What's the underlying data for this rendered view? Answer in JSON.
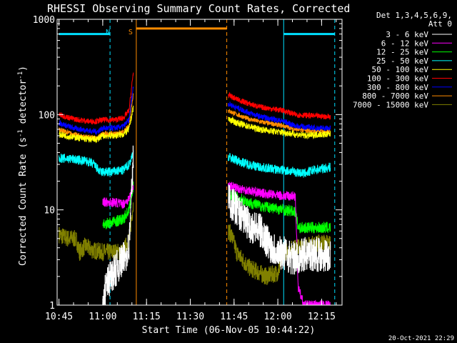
{
  "chart_data": {
    "type": "line",
    "title": "RHESSI Observing Summary Count Rates, Corrected",
    "xlabel": "Start Time (06-Nov-05 10:44:22)",
    "ylabel_main": "Corrected Count Rate (s",
    "ylabel_sup1": "-1",
    "ylabel_mid": " detector",
    "ylabel_sup2": "-1",
    "ylabel_end": ")",
    "yscale": "log",
    "ylim": [
      1,
      1000
    ],
    "xlim_minutes": [
      644.37,
      742.0
    ],
    "xticks": [
      {
        "label": "10:45",
        "min": 645
      },
      {
        "label": "11:00",
        "min": 660
      },
      {
        "label": "11:15",
        "min": 675
      },
      {
        "label": "11:30",
        "min": 690
      },
      {
        "label": "11:45",
        "min": 705
      },
      {
        "label": "12:00",
        "min": 720
      },
      {
        "label": "12:15",
        "min": 735
      }
    ],
    "yticks": [
      {
        "label": "1",
        "value": 1
      },
      {
        "label": "10",
        "value": 10
      },
      {
        "label": "100",
        "value": 100
      },
      {
        "label": "1000",
        "value": 1000
      }
    ],
    "legend": {
      "placement": "right",
      "header_line1": "Det 1,3,4,5,6,9,",
      "header_line2": "Att 0"
    },
    "flags": [
      {
        "label": "N",
        "color": "#00e0ff",
        "segments": [
          [
            645,
            662.5
          ],
          [
            722,
            739.5
          ]
        ],
        "level": 700,
        "bounds": [
          662.5,
          739.5
        ]
      },
      {
        "label": "S",
        "color": "#ff8c00",
        "segments": [
          [
            671.5,
            702.5
          ]
        ],
        "level": 800,
        "bounds": [
          671.5,
          702.5
        ]
      }
    ],
    "vlines": [
      {
        "min": 662.5,
        "color": "#00e0ff",
        "dash": true
      },
      {
        "min": 671.5,
        "color": "#ff8c00",
        "dash": false
      },
      {
        "min": 702.5,
        "color": "#ff8c00",
        "dash": true
      },
      {
        "min": 722.0,
        "color": "#00e0ff",
        "dash": false
      },
      {
        "min": 739.5,
        "color": "#00e0ff",
        "dash": true
      }
    ],
    "series": [
      {
        "name": "3 - 6 keV",
        "color": "#ffffff",
        "noise": 0.18,
        "seg1": [
          [
            660,
            0.8
          ],
          [
            661,
            1.6
          ],
          [
            664,
            2.3
          ],
          [
            667,
            3.0
          ],
          [
            669,
            4.0
          ],
          [
            670,
            20
          ],
          [
            670.5,
            38
          ]
        ],
        "seg2": [
          [
            703,
            13
          ],
          [
            706,
            10
          ],
          [
            710,
            7
          ],
          [
            714,
            6
          ],
          [
            718,
            4
          ],
          [
            722,
            3.5
          ],
          [
            726,
            3
          ],
          [
            727,
            3.2
          ],
          [
            730,
            3.5
          ],
          [
            734,
            3.4
          ],
          [
            738,
            3.3
          ]
        ]
      },
      {
        "name": "6 - 12 keV",
        "color": "#ff00ff",
        "noise": 0.05,
        "seg1": [
          [
            660,
            12
          ],
          [
            664,
            12
          ],
          [
            667,
            11.5
          ],
          [
            669,
            13
          ],
          [
            670.5,
            18
          ]
        ],
        "seg2": [
          [
            703,
            18
          ],
          [
            706,
            17
          ],
          [
            710,
            16
          ],
          [
            714,
            15
          ],
          [
            718,
            14.5
          ],
          [
            722,
            14
          ],
          [
            726,
            14
          ],
          [
            727,
            1.5
          ],
          [
            729,
            1.0
          ],
          [
            738,
            1.0
          ]
        ]
      },
      {
        "name": "12 - 25 keV",
        "color": "#00ff00",
        "noise": 0.06,
        "seg1": [
          [
            660,
            7
          ],
          [
            664,
            7.5
          ],
          [
            667,
            8
          ],
          [
            669,
            10
          ],
          [
            670.5,
            18
          ]
        ],
        "seg2": [
          [
            703,
            15
          ],
          [
            706,
            13.5
          ],
          [
            710,
            12
          ],
          [
            714,
            11
          ],
          [
            718,
            10.5
          ],
          [
            722,
            10
          ],
          [
            726,
            9.5
          ],
          [
            727,
            6.5
          ],
          [
            732,
            6.5
          ],
          [
            738,
            6.5
          ]
        ]
      },
      {
        "name": "25 - 50 keV",
        "color": "#00ffff",
        "noise": 0.05,
        "seg1": [
          [
            645,
            35
          ],
          [
            650,
            34
          ],
          [
            655,
            32
          ],
          [
            657,
            30
          ],
          [
            659,
            25
          ],
          [
            663,
            25
          ],
          [
            667,
            26
          ],
          [
            669,
            30
          ],
          [
            670.5,
            40
          ]
        ],
        "seg2": [
          [
            703,
            36
          ],
          [
            706,
            33
          ],
          [
            710,
            30
          ],
          [
            714,
            28
          ],
          [
            718,
            27
          ],
          [
            722,
            26
          ],
          [
            726,
            25
          ],
          [
            729,
            24
          ],
          [
            732,
            26
          ],
          [
            738,
            28
          ]
        ]
      },
      {
        "name": "50 - 100 keV",
        "color": "#ffff00",
        "noise": 0.035,
        "seg1": [
          [
            645,
            62
          ],
          [
            650,
            58
          ],
          [
            655,
            55
          ],
          [
            658,
            55
          ],
          [
            660,
            60
          ],
          [
            664,
            60
          ],
          [
            667,
            62
          ],
          [
            669,
            70
          ],
          [
            670.5,
            120
          ]
        ],
        "seg2": [
          [
            703,
            90
          ],
          [
            706,
            82
          ],
          [
            710,
            75
          ],
          [
            714,
            70
          ],
          [
            718,
            67
          ],
          [
            722,
            65
          ],
          [
            726,
            62
          ],
          [
            730,
            60
          ],
          [
            734,
            62
          ],
          [
            738,
            62
          ]
        ]
      },
      {
        "name": "100 - 300 keV",
        "color": "#ff0000",
        "noise": 0.03,
        "seg1": [
          [
            645,
            100
          ],
          [
            650,
            90
          ],
          [
            655,
            85
          ],
          [
            658,
            85
          ],
          [
            660,
            88
          ],
          [
            664,
            88
          ],
          [
            667,
            92
          ],
          [
            669,
            110
          ],
          [
            670.5,
            280
          ]
        ],
        "seg2": [
          [
            703,
            160
          ],
          [
            706,
            145
          ],
          [
            710,
            130
          ],
          [
            714,
            120
          ],
          [
            718,
            115
          ],
          [
            722,
            110
          ],
          [
            726,
            100
          ],
          [
            730,
            98
          ],
          [
            734,
            96
          ],
          [
            738,
            95
          ]
        ]
      },
      {
        "name": "300 - 800 keV",
        "color": "#0000ff",
        "noise": 0.03,
        "seg1": [
          [
            645,
            82
          ],
          [
            650,
            72
          ],
          [
            655,
            68
          ],
          [
            658,
            66
          ],
          [
            660,
            72
          ],
          [
            664,
            72
          ],
          [
            667,
            75
          ],
          [
            669,
            88
          ],
          [
            670.5,
            200
          ]
        ],
        "seg2": [
          [
            703,
            130
          ],
          [
            706,
            118
          ],
          [
            710,
            105
          ],
          [
            714,
            95
          ],
          [
            718,
            90
          ],
          [
            722,
            85
          ],
          [
            726,
            76
          ],
          [
            730,
            74
          ],
          [
            734,
            72
          ],
          [
            738,
            72
          ]
        ]
      },
      {
        "name": "800 - 7000 keV",
        "color": "#ff8c00",
        "noise": 0.025,
        "seg1": [
          [
            645,
            70
          ],
          [
            650,
            62
          ],
          [
            655,
            58
          ],
          [
            658,
            57
          ],
          [
            660,
            63
          ],
          [
            664,
            63
          ],
          [
            667,
            65
          ],
          [
            669,
            76
          ],
          [
            670.5,
            170
          ]
        ],
        "seg2": [
          [
            703,
            110
          ],
          [
            706,
            100
          ],
          [
            710,
            90
          ],
          [
            714,
            84
          ],
          [
            718,
            80
          ],
          [
            722,
            76
          ],
          [
            726,
            70
          ],
          [
            730,
            68
          ],
          [
            734,
            67
          ],
          [
            738,
            67
          ]
        ]
      },
      {
        "name": "7000 - 15000 keV",
        "color": "#808000",
        "noise": 0.09,
        "seg1": [
          [
            645,
            5.5
          ],
          [
            648,
            5.0
          ],
          [
            650,
            5.0
          ],
          [
            651,
            4.8
          ],
          [
            652,
            3.6
          ],
          [
            654,
            4.2
          ],
          [
            656,
            3.8
          ],
          [
            660,
            3.6
          ],
          [
            664,
            3.6
          ],
          [
            667,
            3.6
          ],
          [
            669,
            5.0
          ],
          [
            670.5,
            12
          ]
        ],
        "seg2": [
          [
            703,
            6
          ],
          [
            704,
            5.5
          ],
          [
            706,
            3.5
          ],
          [
            710,
            2.5
          ],
          [
            716,
            2.0
          ],
          [
            720,
            2.2
          ],
          [
            722,
            3.6
          ],
          [
            726,
            4.0
          ],
          [
            730,
            4.2
          ],
          [
            734,
            4.5
          ],
          [
            738,
            4.5
          ]
        ]
      }
    ]
  },
  "footer": {
    "timestamp": "20-Oct-2021 22:29"
  }
}
